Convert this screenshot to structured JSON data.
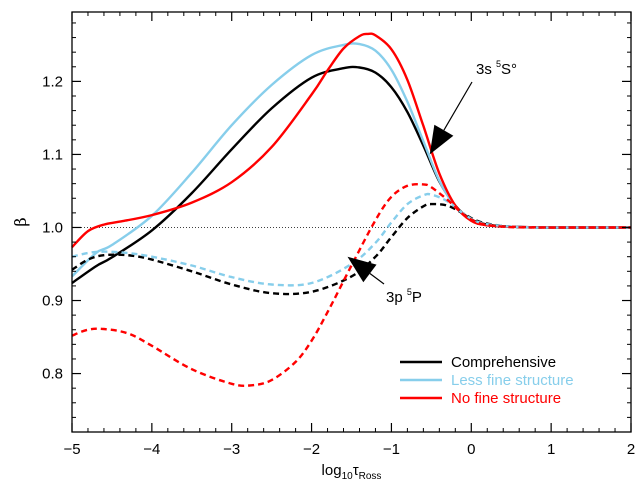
{
  "chart_data": {
    "type": "line",
    "title": "",
    "xlabel": {
      "base": "log",
      "sub1": "10",
      "tau": "τ",
      "sub2": "Ross"
    },
    "ylabel": "β",
    "xlim": [
      -5,
      2
    ],
    "ylim": [
      0.72,
      1.295
    ],
    "grid": false,
    "legend_position": "bottom-right",
    "x_ticks": [
      -5,
      -4,
      -3,
      -2,
      -1,
      0,
      1,
      2
    ],
    "x_tick_labels": [
      "−5",
      "−4",
      "−3",
      "−2",
      "−1",
      "0",
      "1",
      "2"
    ],
    "y_ticks": [
      0.8,
      0.9,
      1.0,
      1.1,
      1.2
    ],
    "y_tick_labels": [
      "0.8",
      "0.9",
      "1.0",
      "1.1",
      "1.2"
    ],
    "reference_line": {
      "y": 1.0,
      "style": "dotted",
      "color": "#000000"
    },
    "colors": {
      "comprehensive": "#000000",
      "less_fine": "#87ceeb",
      "no_fine": "#ff0000"
    },
    "series": [
      {
        "name": "Comprehensive",
        "color": "#000000",
        "dash": "solid",
        "group": "3s5S",
        "x": [
          -5,
          -4.7,
          -4.5,
          -4,
          -3.5,
          -3,
          -2.5,
          -2,
          -1.6,
          -1.4,
          -1.2,
          -1,
          -0.8,
          -0.6,
          -0.4,
          -0.2,
          0,
          0.2,
          0.5,
          1,
          1.5,
          2
        ],
        "y": [
          0.924,
          0.947,
          0.959,
          0.996,
          1.047,
          1.107,
          1.163,
          1.205,
          1.218,
          1.219,
          1.212,
          1.192,
          1.158,
          1.112,
          1.063,
          1.03,
          1.011,
          1.004,
          1.001,
          1.0,
          1.0,
          1.0
        ]
      },
      {
        "name": "Less fine structure",
        "color": "#87ceeb",
        "dash": "solid",
        "group": "3s5S",
        "x": [
          -5,
          -4.7,
          -4.5,
          -4,
          -3.5,
          -3,
          -2.5,
          -2,
          -1.6,
          -1.4,
          -1.2,
          -1,
          -0.8,
          -0.6,
          -0.4,
          -0.2,
          0,
          0.2,
          0.5,
          1,
          1.5,
          2
        ],
        "y": [
          0.933,
          0.965,
          0.976,
          1.016,
          1.075,
          1.14,
          1.195,
          1.236,
          1.25,
          1.251,
          1.242,
          1.216,
          1.172,
          1.118,
          1.064,
          1.029,
          1.01,
          1.003,
          1.001,
          1.0,
          1.0,
          1.0
        ]
      },
      {
        "name": "No fine structure",
        "color": "#ff0000",
        "dash": "solid",
        "group": "3s5S",
        "x": [
          -5,
          -4.8,
          -4.6,
          -4.4,
          -4,
          -3.5,
          -3,
          -2.5,
          -2,
          -1.8,
          -1.6,
          -1.4,
          -1.3,
          -1.2,
          -1,
          -0.8,
          -0.6,
          -0.4,
          -0.2,
          0,
          0.2,
          0.5,
          1,
          1.5,
          2
        ],
        "y": [
          0.973,
          0.995,
          1.004,
          1.008,
          1.017,
          1.034,
          1.062,
          1.11,
          1.182,
          1.215,
          1.245,
          1.262,
          1.265,
          1.263,
          1.244,
          1.202,
          1.139,
          1.074,
          1.03,
          1.009,
          1.003,
          1.001,
          1.0,
          1.0,
          1.0
        ]
      },
      {
        "name": "Comprehensive",
        "color": "#000000",
        "dash": "dashed",
        "group": "3p5P",
        "x": [
          -5,
          -4.8,
          -4.6,
          -4.3,
          -4,
          -3.5,
          -3,
          -2.5,
          -2,
          -1.5,
          -1.2,
          -1,
          -0.8,
          -0.6,
          -0.5,
          -0.3,
          -0.1,
          0.1,
          0.4,
          0.8,
          1.2,
          1.6,
          2
        ],
        "y": [
          0.942,
          0.956,
          0.962,
          0.962,
          0.956,
          0.94,
          0.922,
          0.91,
          0.912,
          0.933,
          0.96,
          0.987,
          1.013,
          1.029,
          1.032,
          1.03,
          1.019,
          1.008,
          1.002,
          1.0,
          1.0,
          1.0,
          1.0
        ]
      },
      {
        "name": "Less fine structure",
        "color": "#87ceeb",
        "dash": "dashed",
        "group": "3p5P",
        "x": [
          -5,
          -4.8,
          -4.6,
          -4.3,
          -4,
          -3.5,
          -3,
          -2.5,
          -2,
          -1.5,
          -1.2,
          -1,
          -0.8,
          -0.6,
          -0.5,
          -0.3,
          -0.1,
          0.1,
          0.4,
          0.8,
          1.2,
          1.6,
          2
        ],
        "y": [
          0.96,
          0.965,
          0.967,
          0.965,
          0.96,
          0.948,
          0.932,
          0.922,
          0.924,
          0.95,
          0.979,
          1.007,
          1.032,
          1.044,
          1.045,
          1.036,
          1.019,
          1.007,
          1.002,
          1.0,
          1.0,
          1.0,
          1.0
        ]
      },
      {
        "name": "No fine structure",
        "color": "#ff0000",
        "dash": "dashed",
        "group": "3p5P",
        "x": [
          -5,
          -4.8,
          -4.6,
          -4.3,
          -4,
          -3.5,
          -3,
          -2.75,
          -2.5,
          -2.2,
          -2,
          -1.8,
          -1.5,
          -1.2,
          -1,
          -0.8,
          -0.6,
          -0.5,
          -0.3,
          -0.1,
          0.1,
          0.4,
          0.8,
          1.2,
          1.6,
          2
        ],
        "y": [
          0.852,
          0.86,
          0.861,
          0.855,
          0.838,
          0.806,
          0.786,
          0.784,
          0.791,
          0.816,
          0.845,
          0.884,
          0.948,
          1.01,
          1.042,
          1.057,
          1.059,
          1.055,
          1.038,
          1.018,
          1.006,
          1.001,
          1.0,
          1.0,
          1.0,
          1.0
        ]
      }
    ],
    "legend": [
      {
        "label": "Comprehensive",
        "color": "#000000"
      },
      {
        "label": "Less fine structure",
        "color": "#87ceeb"
      },
      {
        "label": "No fine structure",
        "color": "#ff0000"
      }
    ],
    "annotations": [
      {
        "name": "3s5S",
        "text_pre": "3s ",
        "sup": "5",
        "text_post": "S°",
        "arrow_tip": [
          -0.52,
          1.1
        ]
      },
      {
        "name": "3p5P",
        "text_pre": "3p ",
        "sup": "5",
        "text_post": "P",
        "arrow_tip": [
          -1.55,
          0.96
        ]
      }
    ]
  }
}
